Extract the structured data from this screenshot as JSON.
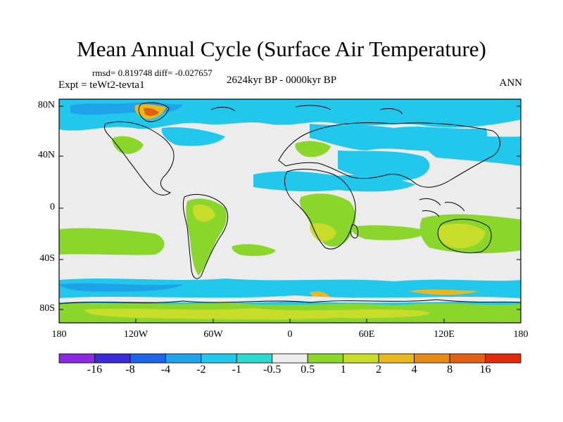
{
  "title": "Mean Annual Cycle (Surface Air Temperature)",
  "stats": "rmsd= 0.819748 diff= -0.027657",
  "experiment": "Expt = teWt2-tevta1",
  "period": "2624kyr BP - 0000kyr BP",
  "season": "ANN",
  "lat_labels": [
    "80N",
    "40N",
    "0",
    "40S",
    "80S"
  ],
  "lon_labels": [
    "180",
    "120W",
    "60W",
    "0",
    "60E",
    "120E",
    "180"
  ],
  "colorbar": {
    "labels": [
      "-16",
      "-8",
      "-4",
      "-2",
      "-1",
      "-0.5",
      "0.5",
      "1",
      "2",
      "4",
      "8",
      "16"
    ],
    "colors": [
      "#8a2be2",
      "#3a2bd6",
      "#1f63e6",
      "#1ea3ea",
      "#22c7ec",
      "#2ed9d0",
      "#ececec",
      "#8ad62a",
      "#c8dc2a",
      "#e8b81e",
      "#e88a18",
      "#e06014",
      "#e02a0e"
    ]
  },
  "map_colors": {
    "neutral": "#ececec",
    "cyan": "#22c7ec",
    "teal": "#2ed9d0",
    "blue": "#1ea3ea",
    "darkblue": "#1f63e6",
    "green": "#8ad62a",
    "yellowgreen": "#c8dc2a",
    "orange": "#e8b81e",
    "red": "#e06014"
  }
}
